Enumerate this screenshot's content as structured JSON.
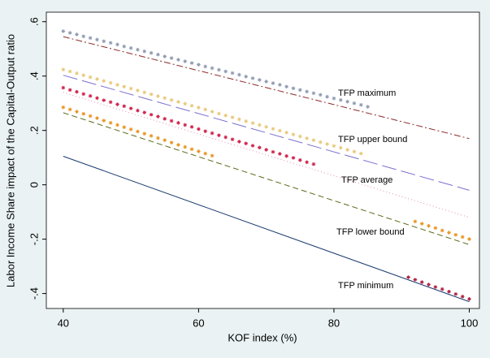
{
  "chart_data": {
    "type": "line",
    "x_label": "KOF index (%)",
    "y_label": "Labor Income Share impact of the Capital-Output ratio",
    "xlim": [
      37.5,
      101.5
    ],
    "ylim": [
      -0.455,
      0.635
    ],
    "xticks": [
      40,
      60,
      80,
      100
    ],
    "yticks": [
      {
        "value": -0.4,
        "label": "-.4"
      },
      {
        "value": -0.2,
        "label": "-.2"
      },
      0,
      {
        "value": 0.2,
        "label": ".2"
      },
      {
        "value": 0.4,
        "label": ".4"
      },
      {
        "value": 0.6,
        "label": ".6"
      }
    ],
    "annotations": [
      "TFP maximum",
      "TFP upper bound",
      "TFP average",
      "TFP lower bound",
      "TFP minimum"
    ],
    "lines": [
      {
        "color": "#8b2a2a",
        "x": [
          40,
          100
        ],
        "values": [
          0.545,
          0.17
        ]
      },
      {
        "color": "#7b6fd0",
        "x": [
          40,
          100
        ],
        "values": [
          0.403,
          -0.02
        ]
      },
      {
        "color": "#e08fb0",
        "x": [
          40,
          100
        ],
        "values": [
          0.34,
          -0.12
        ]
      },
      {
        "color": "#5a6b1a",
        "x": [
          40,
          100
        ],
        "values": [
          0.265,
          -0.22
        ]
      },
      {
        "color": "#1a3a6e",
        "x": [
          40,
          100
        ],
        "values": [
          0.105,
          -0.43
        ]
      }
    ],
    "points": [
      {
        "color": "#8f9bb3",
        "x": [
          40,
          41,
          42,
          43,
          44,
          45,
          46,
          47,
          48,
          49,
          50,
          51,
          52,
          53,
          54,
          55,
          56,
          57,
          58,
          59,
          60,
          61,
          62,
          63,
          64,
          65,
          66,
          67,
          68,
          69,
          70,
          71,
          72,
          73,
          74,
          75,
          76,
          77,
          78,
          79,
          80,
          81,
          82,
          83,
          84,
          85
        ],
        "values": [
          0.565,
          0.559,
          0.553,
          0.546,
          0.54,
          0.534,
          0.528,
          0.522,
          0.516,
          0.509,
          0.503,
          0.497,
          0.491,
          0.485,
          0.479,
          0.472,
          0.466,
          0.46,
          0.454,
          0.448,
          0.442,
          0.435,
          0.429,
          0.423,
          0.417,
          0.411,
          0.405,
          0.398,
          0.392,
          0.386,
          0.38,
          0.374,
          0.368,
          0.361,
          0.355,
          0.349,
          0.343,
          0.337,
          0.331,
          0.324,
          0.318,
          0.312,
          0.306,
          0.3,
          0.294,
          0.287
        ]
      },
      {
        "color": "#e8c97a",
        "x": [
          40,
          41,
          42,
          43,
          44,
          45,
          46,
          47,
          48,
          49,
          50,
          51,
          52,
          53,
          54,
          55,
          56,
          57,
          58,
          59,
          60,
          61,
          62,
          63,
          64,
          65,
          66,
          67,
          68,
          69,
          70,
          71,
          72,
          73,
          74,
          75,
          76,
          77,
          78,
          79,
          80,
          81,
          82,
          83,
          84
        ],
        "values": [
          0.424,
          0.417,
          0.41,
          0.403,
          0.396,
          0.389,
          0.382,
          0.375,
          0.368,
          0.361,
          0.354,
          0.347,
          0.34,
          0.333,
          0.326,
          0.319,
          0.312,
          0.305,
          0.298,
          0.291,
          0.284,
          0.277,
          0.269,
          0.262,
          0.255,
          0.248,
          0.241,
          0.234,
          0.227,
          0.22,
          0.213,
          0.206,
          0.199,
          0.192,
          0.185,
          0.178,
          0.171,
          0.164,
          0.157,
          0.15,
          0.143,
          0.136,
          0.129,
          0.122,
          0.115
        ]
      },
      {
        "color": "#d0204a",
        "x": [
          40,
          41,
          42,
          43,
          44,
          45,
          46,
          47,
          48,
          49,
          50,
          51,
          52,
          53,
          54,
          55,
          56,
          57,
          58,
          59,
          60,
          61,
          62,
          63,
          64,
          65,
          66,
          67,
          68,
          69,
          70,
          71,
          72,
          73,
          74,
          75,
          76,
          77
        ],
        "values": [
          0.357,
          0.349,
          0.342,
          0.334,
          0.327,
          0.319,
          0.311,
          0.304,
          0.296,
          0.289,
          0.281,
          0.273,
          0.266,
          0.258,
          0.251,
          0.243,
          0.235,
          0.228,
          0.22,
          0.213,
          0.205,
          0.197,
          0.19,
          0.182,
          0.175,
          0.167,
          0.159,
          0.152,
          0.144,
          0.137,
          0.129,
          0.121,
          0.114,
          0.106,
          0.099,
          0.091,
          0.083,
          0.076
        ]
      },
      {
        "color": "#e89520",
        "x": [
          40,
          41,
          42,
          43,
          44,
          45,
          46,
          47,
          48,
          49,
          50,
          51,
          52,
          53,
          54,
          55,
          56,
          57,
          58,
          59,
          60,
          61,
          62,
          92,
          93,
          94,
          95,
          96,
          97,
          98,
          99,
          100
        ],
        "values": [
          0.285,
          0.277,
          0.269,
          0.261,
          0.253,
          0.245,
          0.236,
          0.228,
          0.22,
          0.212,
          0.204,
          0.196,
          0.188,
          0.18,
          0.172,
          0.164,
          0.155,
          0.147,
          0.139,
          0.131,
          0.123,
          0.115,
          0.107,
          -0.135,
          -0.143,
          -0.151,
          -0.159,
          -0.168,
          -0.176,
          -0.184,
          -0.192,
          -0.2
        ]
      },
      {
        "color": "#b02040",
        "x": [
          91,
          92,
          93,
          94,
          95,
          96,
          97,
          98,
          99,
          100
        ],
        "values": [
          -0.34,
          -0.349,
          -0.358,
          -0.367,
          -0.376,
          -0.384,
          -0.393,
          -0.402,
          -0.411,
          -0.42
        ]
      }
    ]
  }
}
